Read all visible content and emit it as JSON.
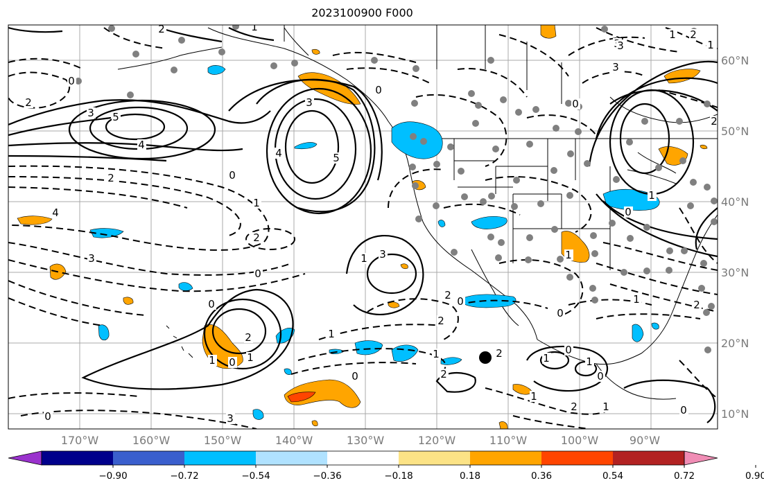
{
  "title": "2023100900 F000",
  "longitude_labels": [
    "170°W",
    "160°W",
    "150°W",
    "140°W",
    "130°W",
    "120°W",
    "110°W",
    "100°W",
    "90°W"
  ],
  "latitude_labels": [
    "60°N",
    "50°N",
    "40°N",
    "30°N",
    "20°N",
    "10°N"
  ],
  "colorbar": {
    "colors": [
      "#9a32cd",
      "#00008b",
      "#3a5fcd",
      "#00bfff",
      "#b0e2ff",
      "#ffffff",
      "#fce386",
      "#ffa500",
      "#ff4500",
      "#b22222",
      "#f08db5"
    ],
    "labels": [
      "−0.90",
      "−0.72",
      "−0.54",
      "−0.36",
      "−0.18",
      "0.18",
      "0.36",
      "0.54",
      "0.72",
      "0.90"
    ]
  },
  "contour_labels": [
    "2",
    "1",
    "2",
    "0",
    "3",
    "5",
    "4",
    "2",
    "1",
    "0",
    "3",
    "5",
    "4",
    "0",
    "3",
    "3",
    "2",
    "4",
    "3",
    "0",
    "0",
    "1",
    "2",
    "0",
    "1",
    "2",
    "1",
    "0",
    "1",
    "3",
    "2",
    "2",
    "1",
    "0",
    "2",
    "2",
    "1",
    "1",
    "0",
    "1",
    "1",
    "2",
    "0",
    "0",
    "2",
    "1",
    "0",
    "1",
    "1",
    "0",
    "0",
    "3",
    "2",
    "3",
    "1",
    "0",
    "1",
    "2"
  ],
  "legend": {
    "anomaly_shading": "colorbar",
    "marker": "station"
  }
}
